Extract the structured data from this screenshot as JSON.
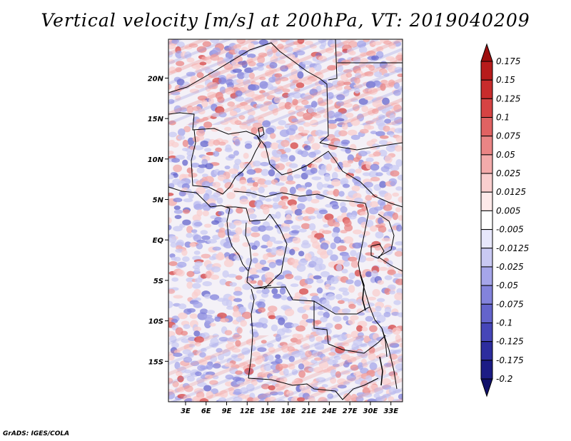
{
  "title": "Vertical velocity [m/s] at 200hPa, VT: 2019040209",
  "credit": "GrADS: IGES/COLA",
  "map": {
    "region": "Central Africa",
    "lat_labels": [
      "20N",
      "15N",
      "10N",
      "5N",
      "EQ",
      "5S",
      "10S",
      "15S"
    ],
    "lat_values": [
      20,
      15,
      10,
      5,
      0,
      -5,
      -10,
      -15
    ],
    "lon_labels": [
      "3E",
      "6E",
      "9E",
      "12E",
      "15E",
      "18E",
      "21E",
      "24E",
      "27E",
      "30E",
      "33E"
    ],
    "lon_values": [
      3,
      6,
      9,
      12,
      15,
      18,
      21,
      24,
      27,
      30,
      33
    ],
    "lat_range": [
      -20,
      24.8
    ],
    "lon_range": [
      0.5,
      34.7
    ]
  },
  "colorbar": {
    "labels": [
      "0.175",
      "0.15",
      "0.125",
      "0.1",
      "0.075",
      "0.05",
      "0.025",
      "0.0125",
      "0.005",
      "-0.005",
      "-0.0125",
      "-0.025",
      "-0.05",
      "-0.075",
      "-0.1",
      "-0.125",
      "-0.175",
      "-0.2"
    ],
    "colors": [
      "#9e0f0f",
      "#b71c1c",
      "#c82c2c",
      "#d64343",
      "#e06262",
      "#ea8585",
      "#f3abab",
      "#f9cece",
      "#fde9e9",
      "#ffffff",
      "#e7e7fb",
      "#c9c9f3",
      "#a5a5e9",
      "#8383dc",
      "#6464cc",
      "#4646b8",
      "#2d2d9e",
      "#1c1c85",
      "#10106a"
    ]
  },
  "colors": {
    "warm": "#d64343",
    "cool": "#6464cc",
    "border": "#000000"
  }
}
